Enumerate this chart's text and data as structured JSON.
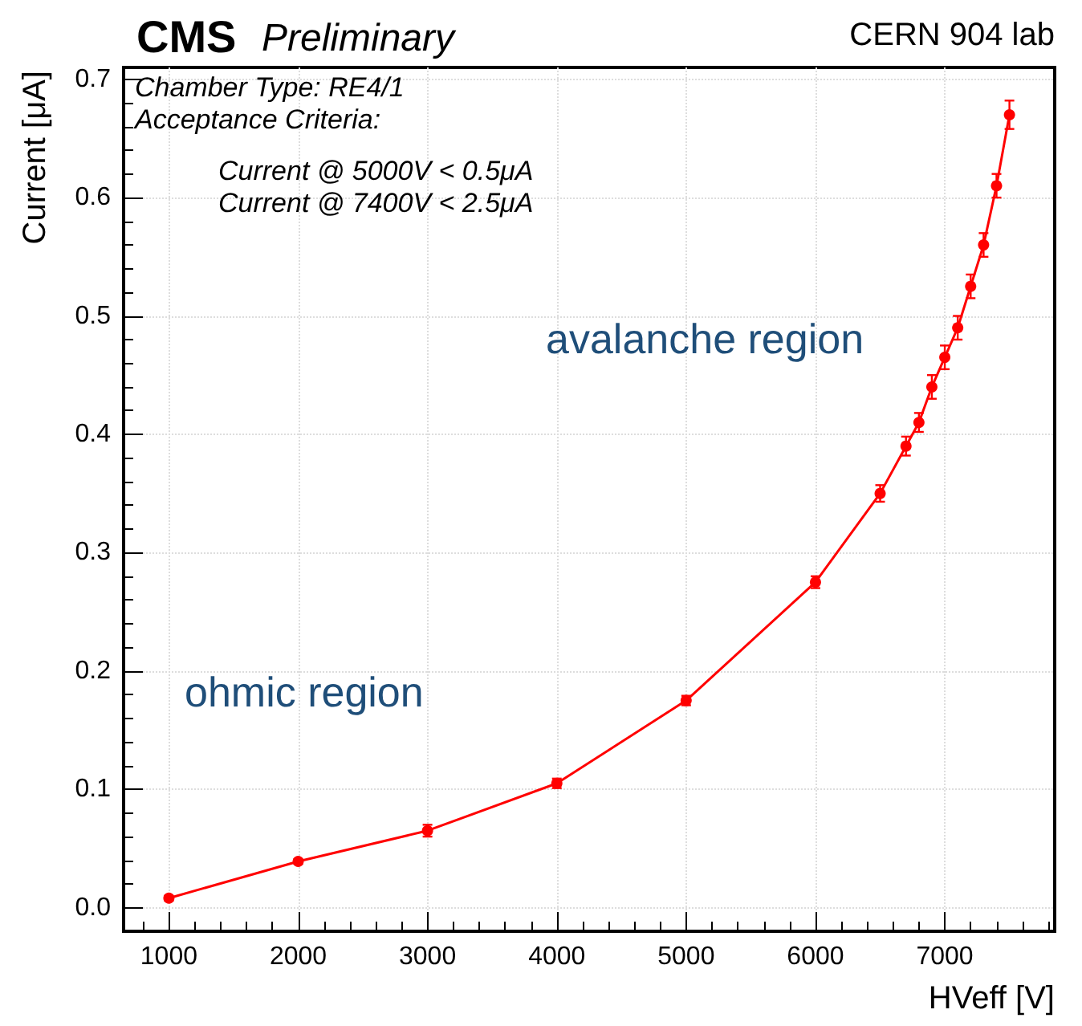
{
  "chart_data": {
    "type": "line",
    "title": "CMS",
    "subtitle": "Preliminary",
    "xlabel": "HVeff [V]",
    "ylabel": "Current [μA]",
    "annotations": [
      "CERN 904 lab",
      "Chamber Type: RE4/1",
      "Acceptance Criteria:",
      "Current @ 5000V < 0.5μA",
      "Current @ 7400V < 2.5μA",
      "avalanche region",
      "ohmic region"
    ],
    "x": [
      1000,
      2000,
      3000,
      4000,
      5000,
      6000,
      6500,
      6700,
      6800,
      6900,
      7000,
      7100,
      7200,
      7300,
      7400,
      7500
    ],
    "series": [
      {
        "color": "#ff0000",
        "values": [
          0.008,
          0.039,
          0.065,
          0.105,
          0.175,
          0.275,
          0.35,
          0.39,
          0.41,
          0.44,
          0.465,
          0.49,
          0.525,
          0.56,
          0.61,
          0.67
        ],
        "errors": [
          0.002,
          0.002,
          0.005,
          0.004,
          0.004,
          0.005,
          0.007,
          0.008,
          0.008,
          0.01,
          0.01,
          0.01,
          0.01,
          0.01,
          0.01,
          0.012
        ]
      }
    ],
    "xlim": [
      650,
      7850
    ],
    "xticks": [
      1000,
      2000,
      3000,
      4000,
      5000,
      6000,
      7000
    ],
    "ylim": [
      -0.02,
      0.71
    ],
    "yticks": [
      {
        "value": 0,
        "label": "0.0"
      },
      {
        "value": 0.1,
        "label": "0.1"
      },
      {
        "value": 0.2,
        "label": "0.2"
      },
      {
        "value": 0.3,
        "label": "0.3"
      },
      {
        "value": 0.4,
        "label": "0.4"
      },
      {
        "value": 0.5,
        "label": "0.5"
      },
      {
        "value": 0.6,
        "label": "0.6"
      },
      {
        "value": 0.7,
        "label": "0.7"
      }
    ],
    "grid": true,
    "marker": "circle",
    "line_style": "solid"
  }
}
